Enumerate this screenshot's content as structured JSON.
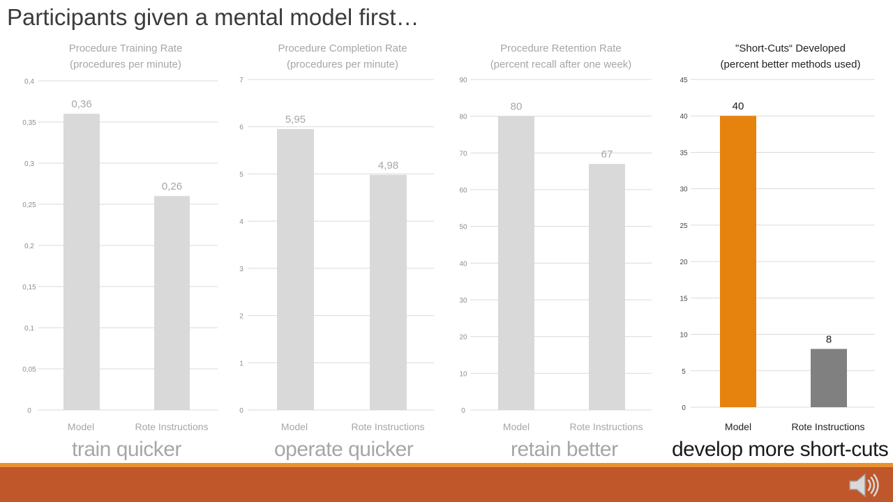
{
  "slide": {
    "title": "Participants given a mental model first…"
  },
  "captions": [
    "train quicker",
    "operate quicker",
    "retain better",
    "develop more short-cuts"
  ],
  "colors": {
    "bar_default": "#d9d9d9",
    "bar_model_highlight": "#e6820e",
    "bar_rote_highlight": "#808080",
    "chart_text": "#a6a6a6",
    "chart_text_dark": "#1a1a1a",
    "band_orange": "#e8922e",
    "band_rust": "#c0572a"
  },
  "icons": {
    "audio": "speaker-icon"
  },
  "chart_data": [
    {
      "type": "bar",
      "title": "Procedure Training Rate",
      "subtitle": "(procedures per minute)",
      "categories": [
        "Model",
        "Rote Instructions"
      ],
      "values": [
        0.36,
        0.26
      ],
      "value_labels": [
        "0,36",
        "0,26"
      ],
      "ylim": [
        0,
        0.4
      ],
      "yticks": [
        "0",
        "0,05",
        "0,1",
        "0,15",
        "0,2",
        "0,25",
        "0,3",
        "0,35",
        "0,4"
      ],
      "grid": true,
      "legend": "none"
    },
    {
      "type": "bar",
      "title": "Procedure Completion Rate",
      "subtitle": "(procedures per minute)",
      "categories": [
        "Model",
        "Rote Instructions"
      ],
      "values": [
        5.95,
        4.98
      ],
      "value_labels": [
        "5,95",
        "4,98"
      ],
      "ylim": [
        0,
        7
      ],
      "yticks": [
        "0",
        "1",
        "2",
        "3",
        "4",
        "5",
        "6",
        "7"
      ],
      "grid": true,
      "legend": "none"
    },
    {
      "type": "bar",
      "title": "Procedure Retention Rate",
      "subtitle": "(percent recall after one week)",
      "categories": [
        "Model",
        "Rote Instructions"
      ],
      "values": [
        80,
        67
      ],
      "value_labels": [
        "80",
        "67"
      ],
      "ylim": [
        0,
        90
      ],
      "yticks": [
        "0",
        "10",
        "20",
        "30",
        "40",
        "50",
        "60",
        "70",
        "80",
        "90"
      ],
      "grid": true,
      "legend": "none"
    },
    {
      "type": "bar",
      "title": "\"Short-Cuts“ Developed",
      "subtitle": "(percent better methods used)",
      "categories": [
        "Model",
        "Rote Instructions"
      ],
      "values": [
        40,
        8
      ],
      "value_labels": [
        "40",
        "8"
      ],
      "ylim": [
        0,
        45
      ],
      "yticks": [
        "0",
        "5",
        "10",
        "15",
        "20",
        "25",
        "30",
        "35",
        "40",
        "45"
      ],
      "grid": true,
      "legend": "none",
      "highlight": true
    }
  ]
}
